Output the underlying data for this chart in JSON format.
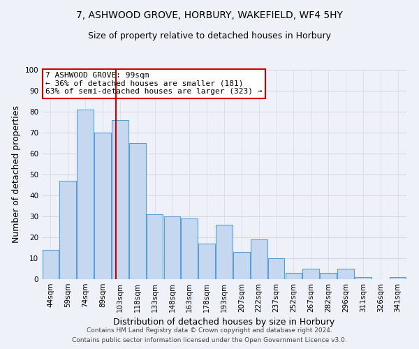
{
  "title1": "7, ASHWOOD GROVE, HORBURY, WAKEFIELD, WF4 5HY",
  "title2": "Size of property relative to detached houses in Horbury",
  "xlabel": "Distribution of detached houses by size in Horbury",
  "ylabel": "Number of detached properties",
  "categories": [
    "44sqm",
    "59sqm",
    "74sqm",
    "89sqm",
    "103sqm",
    "118sqm",
    "133sqm",
    "148sqm",
    "163sqm",
    "178sqm",
    "193sqm",
    "207sqm",
    "222sqm",
    "237sqm",
    "252sqm",
    "267sqm",
    "282sqm",
    "296sqm",
    "311sqm",
    "326sqm",
    "341sqm"
  ],
  "values": [
    14,
    47,
    81,
    70,
    76,
    65,
    31,
    30,
    29,
    17,
    26,
    13,
    19,
    10,
    3,
    5,
    3,
    5,
    1,
    0,
    1
  ],
  "bar_color": "#c5d8f0",
  "bar_edge_color": "#5a9fd4",
  "red_line_x": 3.78,
  "annotation_text": "7 ASHWOOD GROVE: 99sqm\n← 36% of detached houses are smaller (181)\n63% of semi-detached houses are larger (323) →",
  "annotation_box_color": "#ffffff",
  "annotation_box_edge": "#cc0000",
  "red_line_color": "#cc0000",
  "grid_color": "#d0d8e8",
  "bg_color": "#eef2f8",
  "footer1": "Contains HM Land Registry data © Crown copyright and database right 2024.",
  "footer2": "Contains public sector information licensed under the Open Government Licence v3.0.",
  "ylim": [
    0,
    100
  ],
  "yticks": [
    0,
    10,
    20,
    30,
    40,
    50,
    60,
    70,
    80,
    90,
    100
  ],
  "title1_fontsize": 10,
  "title2_fontsize": 9,
  "ylabel_fontsize": 9,
  "xlabel_fontsize": 9,
  "tick_fontsize": 7.5,
  "annotation_fontsize": 8,
  "footer_fontsize": 6.5
}
